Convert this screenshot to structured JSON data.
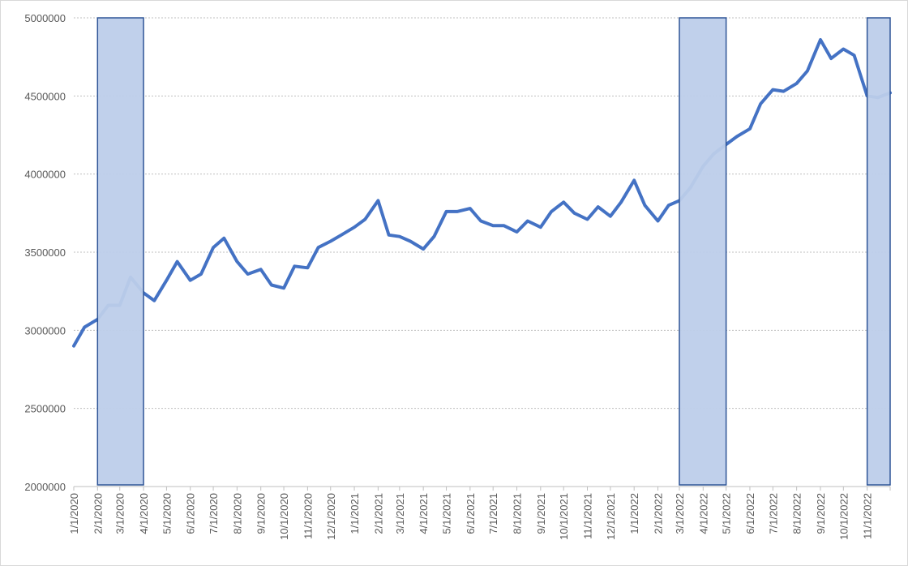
{
  "chart_data": {
    "type": "line",
    "x": [
      "1/1/2020",
      "1/15/2020",
      "2/1/2020",
      "2/15/2020",
      "3/1/2020",
      "3/15/2020",
      "4/1/2020",
      "4/15/2020",
      "5/1/2020",
      "5/15/2020",
      "6/1/2020",
      "6/15/2020",
      "7/1/2020",
      "7/15/2020",
      "8/1/2020",
      "8/15/2020",
      "9/1/2020",
      "9/15/2020",
      "10/1/2020",
      "10/15/2020",
      "11/1/2020",
      "11/15/2020",
      "12/1/2020",
      "12/15/2020",
      "1/1/2021",
      "1/15/2021",
      "2/1/2021",
      "2/15/2021",
      "3/1/2021",
      "3/15/2021",
      "4/1/2021",
      "4/15/2021",
      "5/1/2021",
      "5/15/2021",
      "6/1/2021",
      "6/15/2021",
      "7/1/2021",
      "7/15/2021",
      "8/1/2021",
      "8/15/2021",
      "9/1/2021",
      "9/15/2021",
      "10/1/2021",
      "10/15/2021",
      "11/1/2021",
      "11/15/2021",
      "12/1/2021",
      "12/15/2021",
      "1/1/2022",
      "1/15/2022",
      "2/1/2022",
      "2/15/2022",
      "3/1/2022",
      "3/15/2022",
      "4/1/2022",
      "4/15/2022",
      "5/1/2022",
      "5/15/2022",
      "6/1/2022",
      "6/15/2022",
      "7/1/2022",
      "7/15/2022",
      "8/1/2022",
      "8/15/2022",
      "9/1/2022",
      "9/15/2022",
      "10/1/2022",
      "10/15/2022",
      "11/1/2022",
      "11/15/2022",
      "12/1/2022"
    ],
    "series": [
      {
        "color": "#4472c4",
        "values": [
          2900000,
          3020000,
          3070000,
          3160000,
          3160000,
          3340000,
          3240000,
          3190000,
          3320000,
          3440000,
          3320000,
          3360000,
          3530000,
          3590000,
          3440000,
          3360000,
          3390000,
          3290000,
          3270000,
          3410000,
          3400000,
          3530000,
          3570000,
          3610000,
          3660000,
          3710000,
          3830000,
          3610000,
          3600000,
          3570000,
          3520000,
          3600000,
          3760000,
          3760000,
          3780000,
          3700000,
          3670000,
          3670000,
          3630000,
          3700000,
          3660000,
          3760000,
          3820000,
          3750000,
          3710000,
          3790000,
          3730000,
          3820000,
          3960000,
          3800000,
          3700000,
          3800000,
          3830000,
          3910000,
          4050000,
          4130000,
          4190000,
          4240000,
          4290000,
          4450000,
          4540000,
          4530000,
          4580000,
          4660000,
          4860000,
          4740000,
          4800000,
          4760000,
          4500000,
          4490000,
          4520000
        ]
      }
    ],
    "highlights": [
      {
        "start": "2/1/2020",
        "end": "4/1/2020",
        "color": "#bdcdea"
      },
      {
        "start": "3/1/2022",
        "end": "5/1/2022",
        "color": "#bdcdea"
      },
      {
        "start": "11/1/2022",
        "end": "12/1/2022",
        "color": "#bdcdea"
      }
    ],
    "xlim": [
      "1/1/2020",
      "12/1/2022"
    ],
    "xticks": [
      "1/1/2020",
      "2/1/2020",
      "3/1/2020",
      "4/1/2020",
      "5/1/2020",
      "6/1/2020",
      "7/1/2020",
      "8/1/2020",
      "9/1/2020",
      "10/1/2020",
      "11/1/2020",
      "12/1/2020",
      "1/1/2021",
      "2/1/2021",
      "3/1/2021",
      "4/1/2021",
      "5/1/2021",
      "6/1/2021",
      "7/1/2021",
      "8/1/2021",
      "9/1/2021",
      "10/1/2021",
      "11/1/2021",
      "12/1/2021",
      "1/1/2022",
      "2/1/2022",
      "3/1/2022",
      "4/1/2022",
      "5/1/2022",
      "6/1/2022",
      "7/1/2022",
      "8/1/2022",
      "9/1/2022",
      "10/1/2022",
      "11/1/2022"
    ],
    "ylim": [
      2000000,
      5000000
    ],
    "yticks": [
      2000000,
      2500000,
      3000000,
      3500000,
      4000000,
      4500000,
      5000000
    ],
    "grid": true
  }
}
